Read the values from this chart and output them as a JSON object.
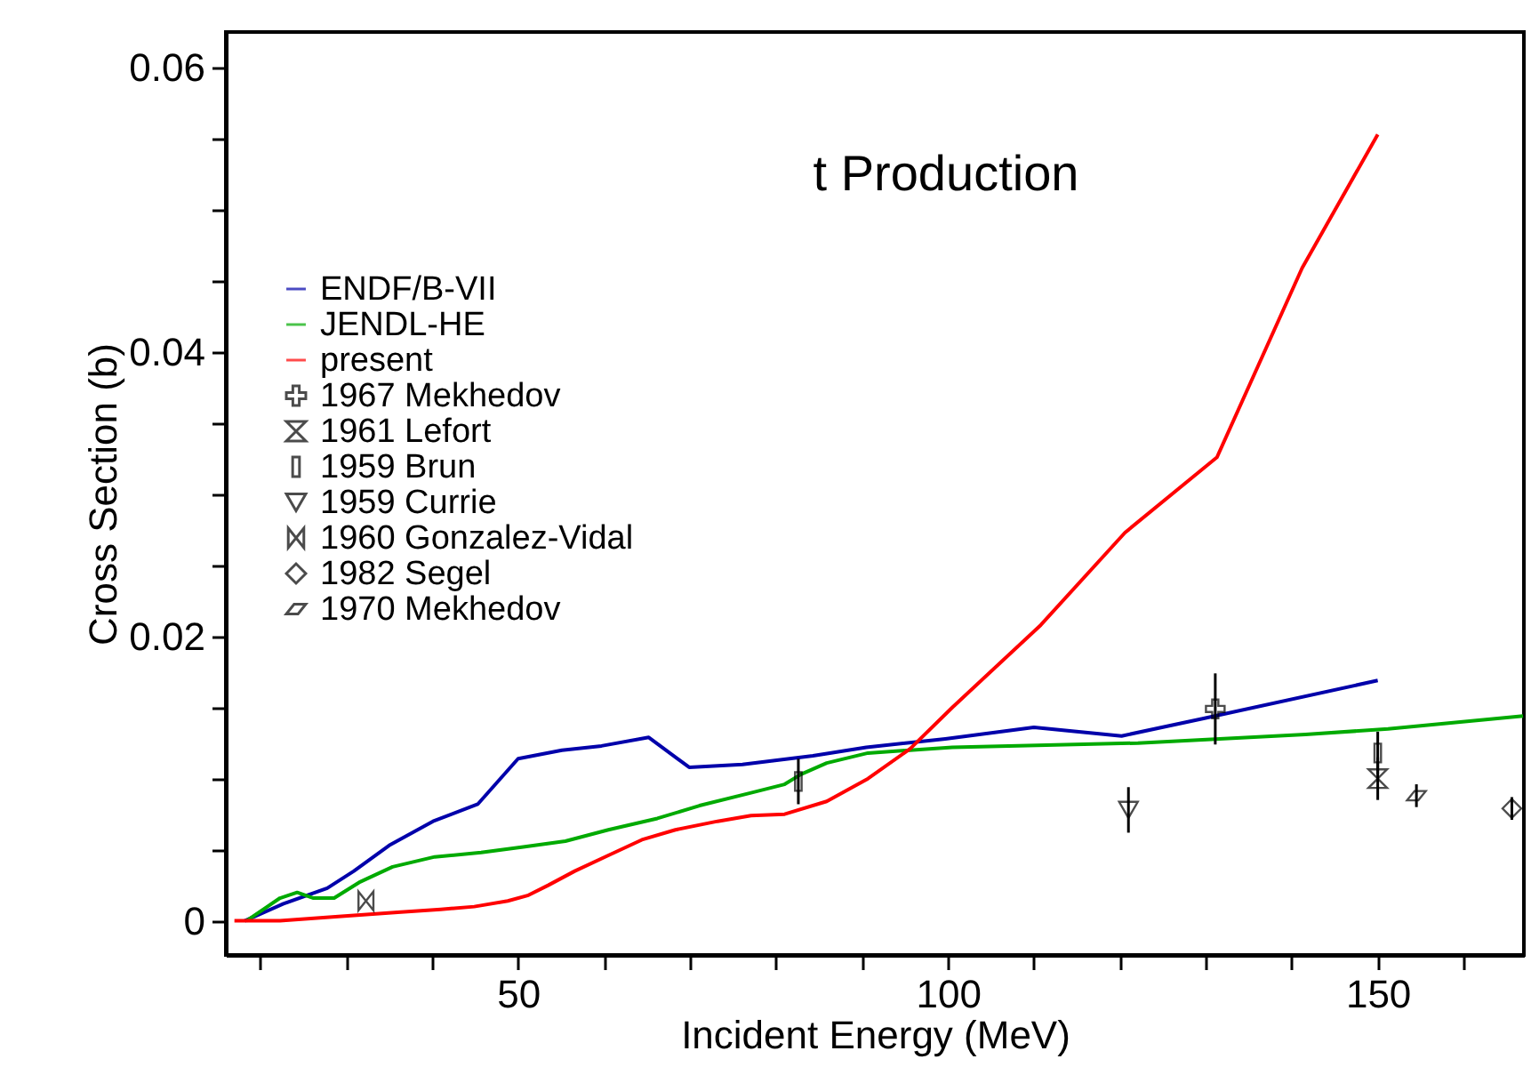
{
  "chart_data": {
    "type": "line",
    "title": "t Production",
    "xlabel": "Incident Energy (MeV)",
    "ylabel": "Cross Section (b)",
    "xlim": [
      16,
      167
    ],
    "ylim": [
      -0.0024,
      0.0625
    ],
    "xticks": [
      {
        "value": 20,
        "label": null
      },
      {
        "value": 30,
        "label": null
      },
      {
        "value": 40,
        "label": null
      },
      50,
      {
        "value": 60,
        "label": null
      },
      {
        "value": 70,
        "label": null
      },
      {
        "value": 80,
        "label": null
      },
      {
        "value": 90,
        "label": null
      },
      100,
      {
        "value": 110,
        "label": null
      },
      {
        "value": 120,
        "label": null
      },
      {
        "value": 130,
        "label": null
      },
      {
        "value": 140,
        "label": null
      },
      150,
      {
        "value": 160,
        "label": null
      }
    ],
    "yticks": [
      0,
      {
        "value": 0.005,
        "label": null
      },
      {
        "value": 0.01,
        "label": null
      },
      {
        "value": 0.015,
        "label": null
      },
      0.02,
      {
        "value": 0.025,
        "label": null
      },
      {
        "value": 0.03,
        "label": null
      },
      {
        "value": 0.035,
        "label": null
      },
      0.04,
      {
        "value": 0.045,
        "label": null
      },
      {
        "value": 0.05,
        "label": null
      },
      {
        "value": 0.055,
        "label": null
      },
      0.06
    ],
    "legend": "top left",
    "grid": false,
    "series": [
      {
        "name": "ENDF/B-VII",
        "color": "#0000aa",
        "x": [
          18.2,
          22.7,
          27.8,
          30.9,
          35.0,
          40.1,
          45.3,
          50.0,
          55.1,
          59.7,
          65.2,
          69.9,
          76.1,
          84.3,
          90.5,
          99.7,
          110.0,
          120.2,
          129.5,
          150.0
        ],
        "values": [
          0,
          0.0012,
          0.0023,
          0.0035,
          0.0053,
          0.007,
          0.0082,
          0.0114,
          0.012,
          0.0123,
          0.0129,
          0.0108,
          0.011,
          0.0116,
          0.0122,
          0.0128,
          0.0136,
          0.013,
          0.0142,
          0.0169
        ]
      },
      {
        "name": "JENDL-HE",
        "color": "#00aa00",
        "x": [
          18.4,
          22.3,
          24.3,
          26.2,
          28.6,
          31.5,
          35.4,
          40.3,
          45.7,
          50.6,
          55.5,
          60.5,
          66.2,
          71.1,
          77.1,
          81.0,
          82.9,
          85.9,
          90.7,
          100.5,
          122.1,
          141.6,
          151.2,
          166.9
        ],
        "values": [
          0,
          0.0016,
          0.002,
          0.0016,
          0.0016,
          0.0027,
          0.0038,
          0.0045,
          0.0048,
          0.0052,
          0.0056,
          0.0064,
          0.0072,
          0.0081,
          0.009,
          0.0096,
          0.0103,
          0.0111,
          0.0118,
          0.0122,
          0.0125,
          0.0131,
          0.0135,
          0.0144
        ]
      },
      {
        "name": "present",
        "color": "#ff0000",
        "x": [
          17.0,
          22.3,
          29.1,
          36.0,
          41.0,
          44.9,
          48.8,
          51.2,
          53.5,
          56.6,
          60.5,
          64.4,
          68.3,
          73.2,
          77.1,
          81.0,
          85.9,
          90.7,
          95.6,
          100.5,
          110.8,
          120.6,
          131.3,
          141.2,
          150.0
        ],
        "values": [
          0,
          0,
          0.0003,
          0.0006,
          0.0008,
          0.001,
          0.0014,
          0.0018,
          0.0025,
          0.0035,
          0.0046,
          0.0057,
          0.0064,
          0.007,
          0.0074,
          0.0075,
          0.0084,
          0.01,
          0.0121,
          0.015,
          0.0208,
          0.0273,
          0.0326,
          0.0459,
          0.0553
        ]
      },
      {
        "name": "1967 Mekhedov",
        "type": "scatter",
        "marker": "cross",
        "color": "#000000",
        "x": [
          131.1
        ],
        "values": [
          0.0149
        ],
        "errors": [
          0.0025
        ]
      },
      {
        "name": "1961 Lefort",
        "type": "scatter",
        "color": "#000000",
        "x": [
          150.0
        ],
        "values": [
          0.01
        ],
        "errors": [
          0.0015
        ]
      },
      {
        "name": "1959 Brun",
        "type": "scatter",
        "marker": "square",
        "color": "#000000",
        "x": [
          82.6,
          150.0
        ],
        "values": [
          0.0098,
          0.0118
        ],
        "errors": [
          0.0016,
          0.0015
        ]
      },
      {
        "name": "1959 Currie",
        "type": "scatter",
        "marker": "triangle",
        "color": "#000000",
        "x": [
          121.0
        ],
        "values": [
          0.0078
        ],
        "errors": [
          0.0016
        ]
      },
      {
        "name": "1960 Gonzalez-Vidal",
        "type": "scatter",
        "color": "#000000",
        "x": [
          32.3
        ],
        "values": [
          0.0014
        ]
      },
      {
        "name": "1982 Segel",
        "type": "scatter",
        "marker": "diamond",
        "color": "#000000",
        "x": [
          165.6
        ],
        "values": [
          0.0079
        ],
        "errors": [
          0.0008
        ]
      },
      {
        "name": "1970 Mekhedov",
        "type": "scatter",
        "color": "#000000",
        "x": [
          154.5
        ],
        "values": [
          0.0088
        ],
        "errors": [
          0.0008
        ]
      }
    ]
  }
}
